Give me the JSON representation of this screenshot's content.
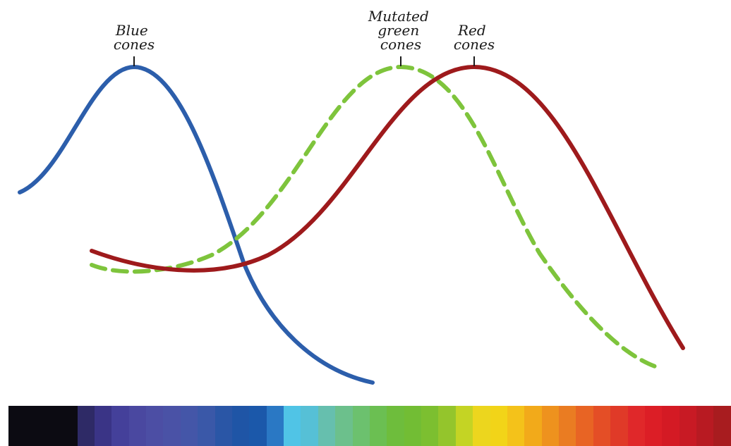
{
  "labels": {
    "blue": [
      "Blue",
      "cones"
    ],
    "green": [
      "Mutated",
      "green",
      "cones"
    ],
    "red": [
      "Red",
      "cones"
    ]
  },
  "colors": {
    "blue_curve": "#2c5eab",
    "green_curve": "#7ec43c",
    "red_curve": "#9e1a1c",
    "marker": "#1a1a1a"
  },
  "spectrum": [
    "#0c0b12",
    "#0c0b12",
    "#0c0b12",
    "#0c0b12",
    "#2e2a66",
    "#3a3486",
    "#44409a",
    "#4a48a0",
    "#4c4ea4",
    "#4a52a6",
    "#4456a8",
    "#3a58a8",
    "#2a56a6",
    "#1f55a6",
    "#1b58aa",
    "#2a78c4",
    "#50c4e6",
    "#56c0d6",
    "#66bfae",
    "#6cc08c",
    "#6cc16e",
    "#6bbf52",
    "#6ebd3c",
    "#72bd34",
    "#7cbf30",
    "#94c52c",
    "#c4d424",
    "#ecd61e",
    "#f2d418",
    "#f4c21a",
    "#f2aa1a",
    "#ee921e",
    "#ea7c22",
    "#e86424",
    "#e44e26",
    "#e03a28",
    "#e0282a",
    "#dc1e26",
    "#d41a24",
    "#c81a24",
    "#b81a22",
    "#a81c1f"
  ]
}
